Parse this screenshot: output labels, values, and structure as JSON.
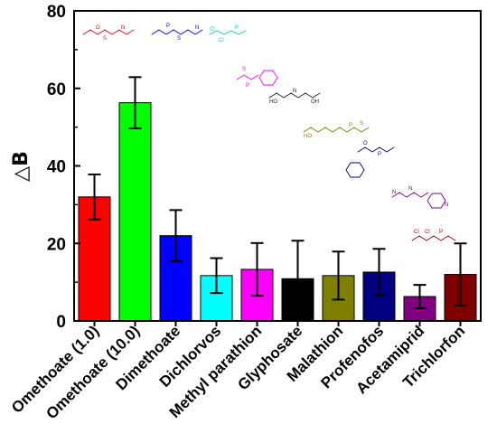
{
  "chart_data": {
    "type": "bar",
    "ylabel": "△B",
    "ylim": [
      0,
      80
    ],
    "yticks": [
      0,
      20,
      40,
      60,
      80
    ],
    "categories": [
      "Omethoate (1.0)",
      "Omethoate (10.0)",
      "Dimethoate",
      "Dichlorvos",
      "Methyl parathion",
      "Glyphosate",
      "Malathion",
      "Profenofos",
      "Acetamiprid",
      "Trichlorfon"
    ],
    "values": [
      32.0,
      56.3,
      22.0,
      11.7,
      13.3,
      10.9,
      11.7,
      12.6,
      6.3,
      12.0
    ],
    "errors": [
      5.8,
      6.6,
      6.6,
      4.5,
      6.8,
      9.8,
      6.2,
      6.0,
      3.0,
      8.0
    ],
    "colors": [
      "#ff0000",
      "#00ff00",
      "#0000ff",
      "#00ffff",
      "#ff00ff",
      "#000000",
      "#808000",
      "#000080",
      "#800080",
      "#800000"
    ],
    "grid": false,
    "legend": "none"
  }
}
